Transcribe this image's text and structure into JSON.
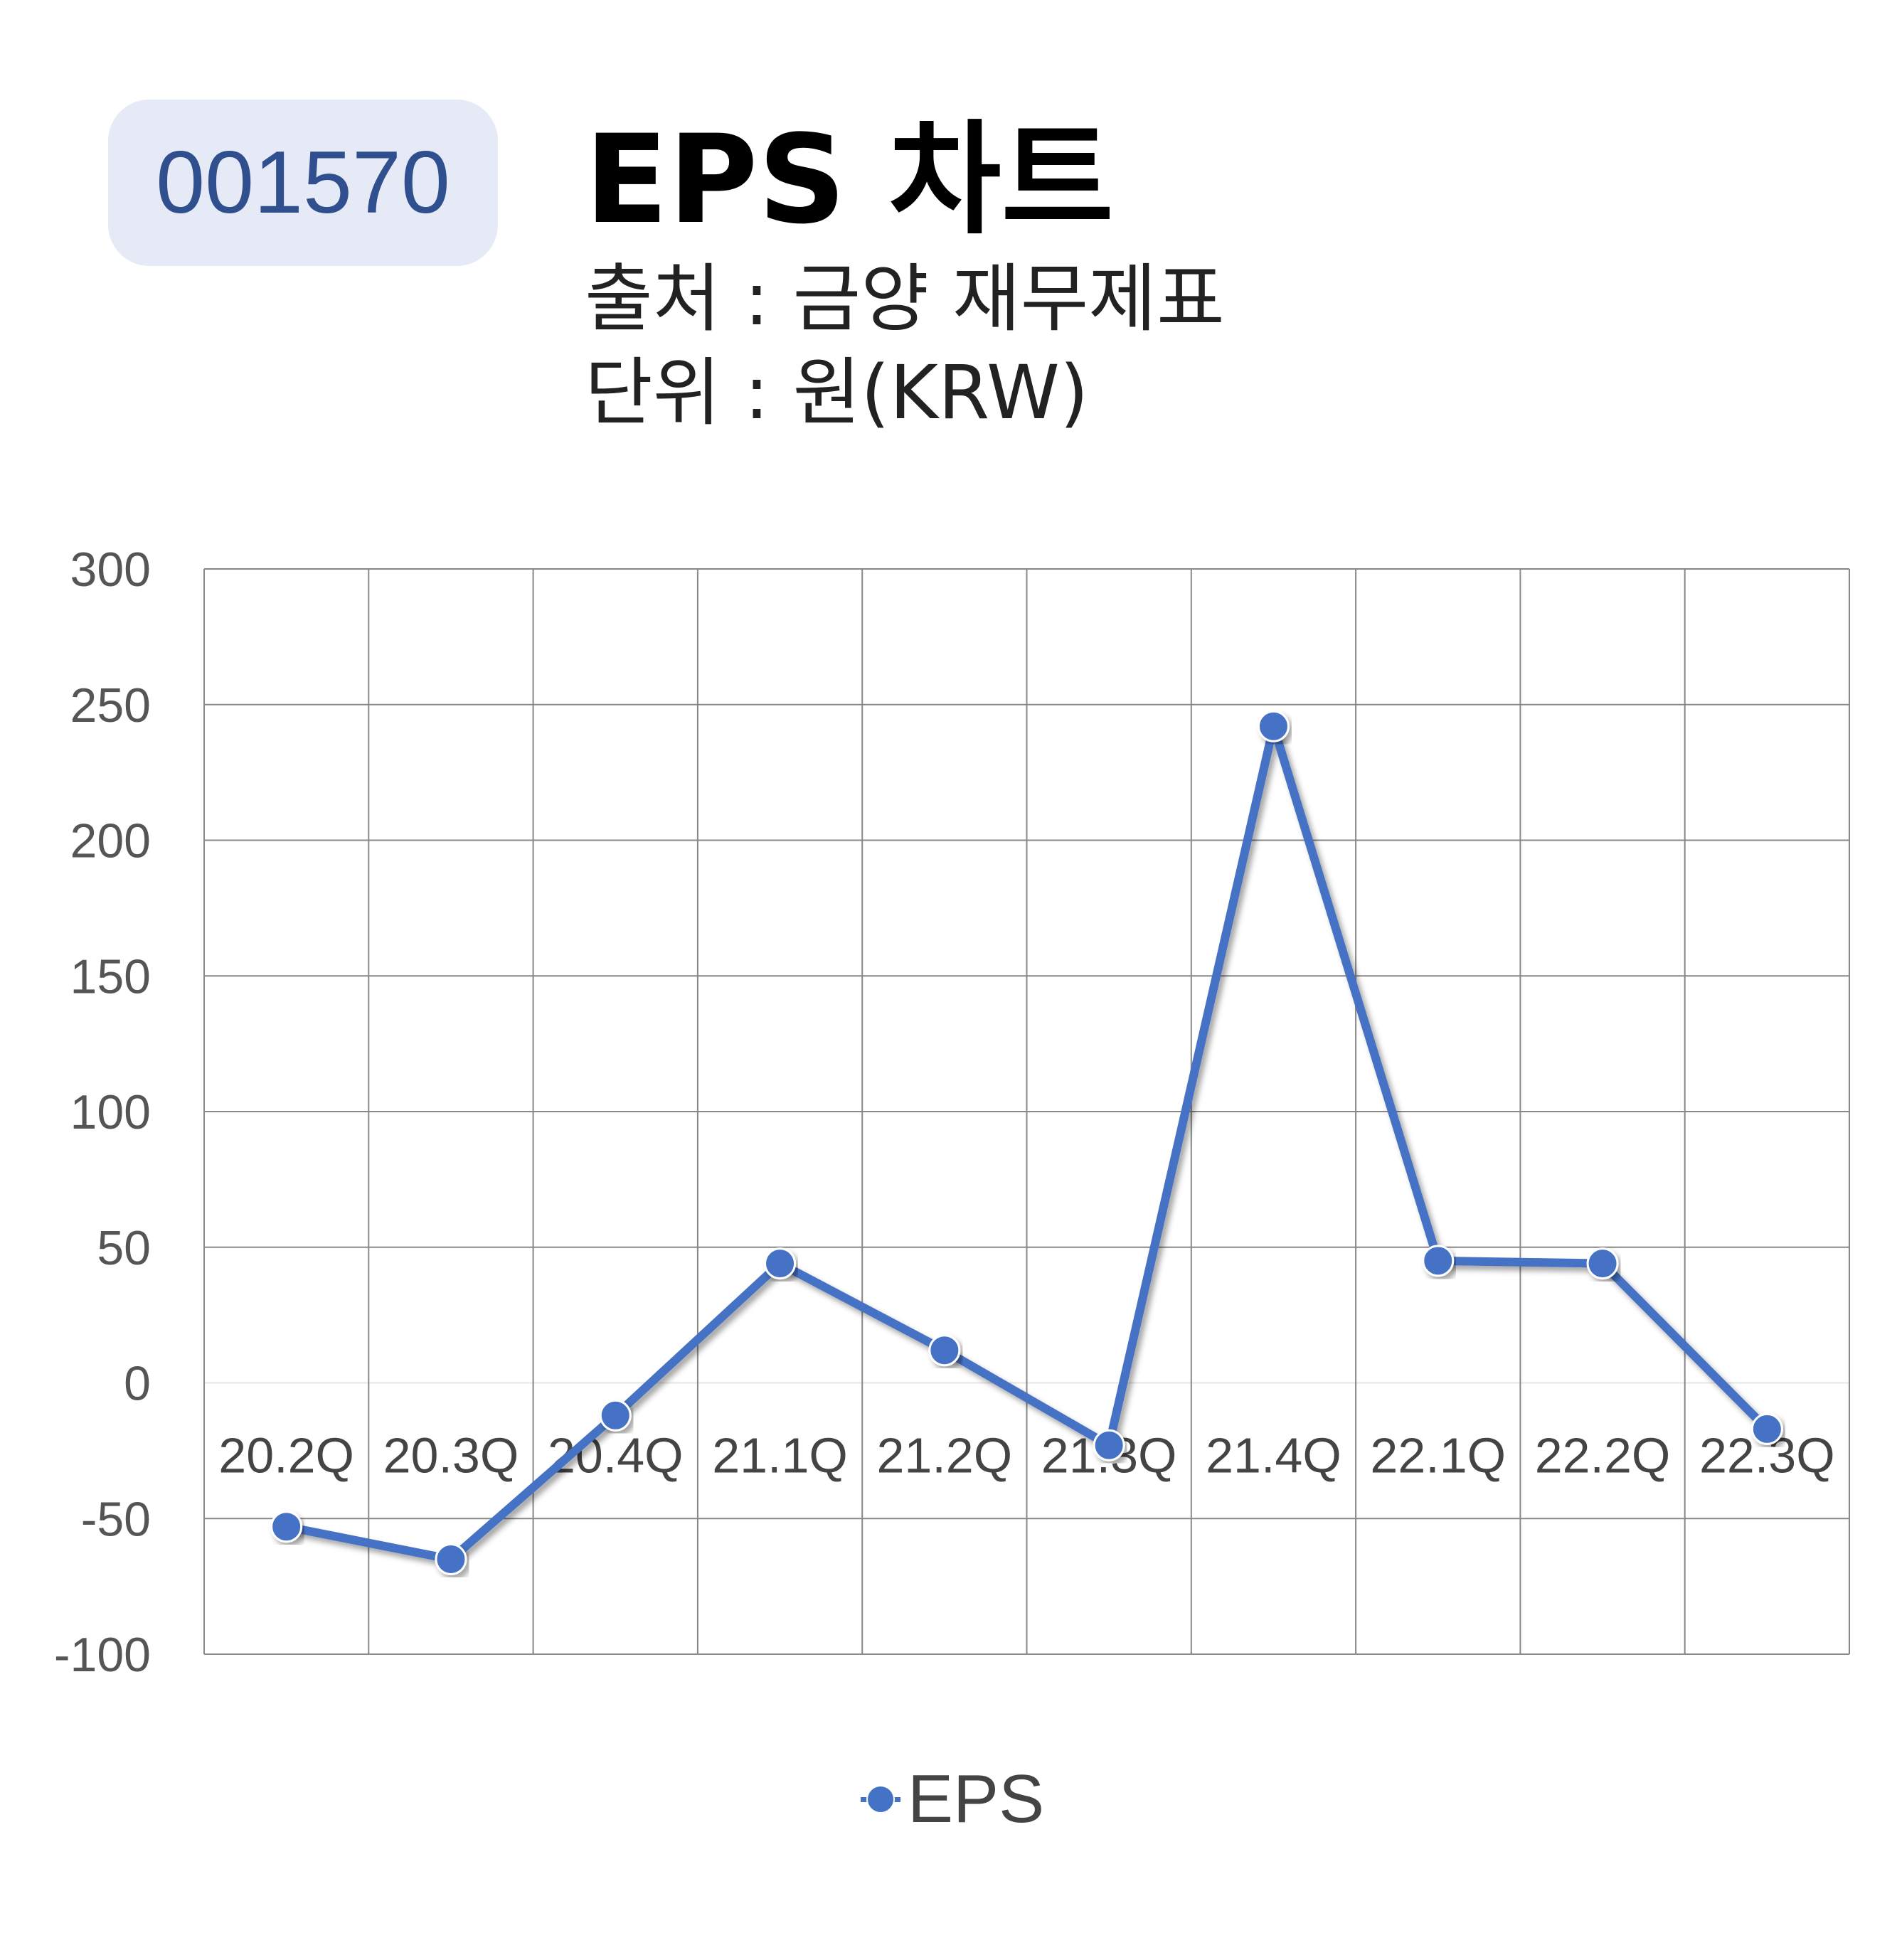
{
  "badge": {
    "code": "001570"
  },
  "header": {
    "title": "EPS 차트",
    "source": "출처 : 금양 재무제표",
    "unit": "단위 : 원(KRW)"
  },
  "colors": {
    "series": "#4472c4",
    "badge_bg": "#e5eaf6",
    "badge_text": "#2f4f8f",
    "grid": "#888888"
  },
  "chart_data": {
    "type": "line",
    "categories": [
      "20.2Q",
      "20.3Q",
      "20.4Q",
      "21.1Q",
      "21.2Q",
      "21.3Q",
      "21.4Q",
      "22.1Q",
      "22.2Q",
      "22.3Q"
    ],
    "series": [
      {
        "name": "EPS",
        "values": [
          -53,
          -65,
          -12,
          44,
          12,
          -23,
          242,
          45,
          44,
          -17
        ]
      }
    ],
    "yticks": [
      300,
      250,
      200,
      150,
      100,
      50,
      0,
      -50,
      -100
    ],
    "ylim": [
      -100,
      300
    ],
    "grid": true,
    "legend": "bottom-center"
  }
}
